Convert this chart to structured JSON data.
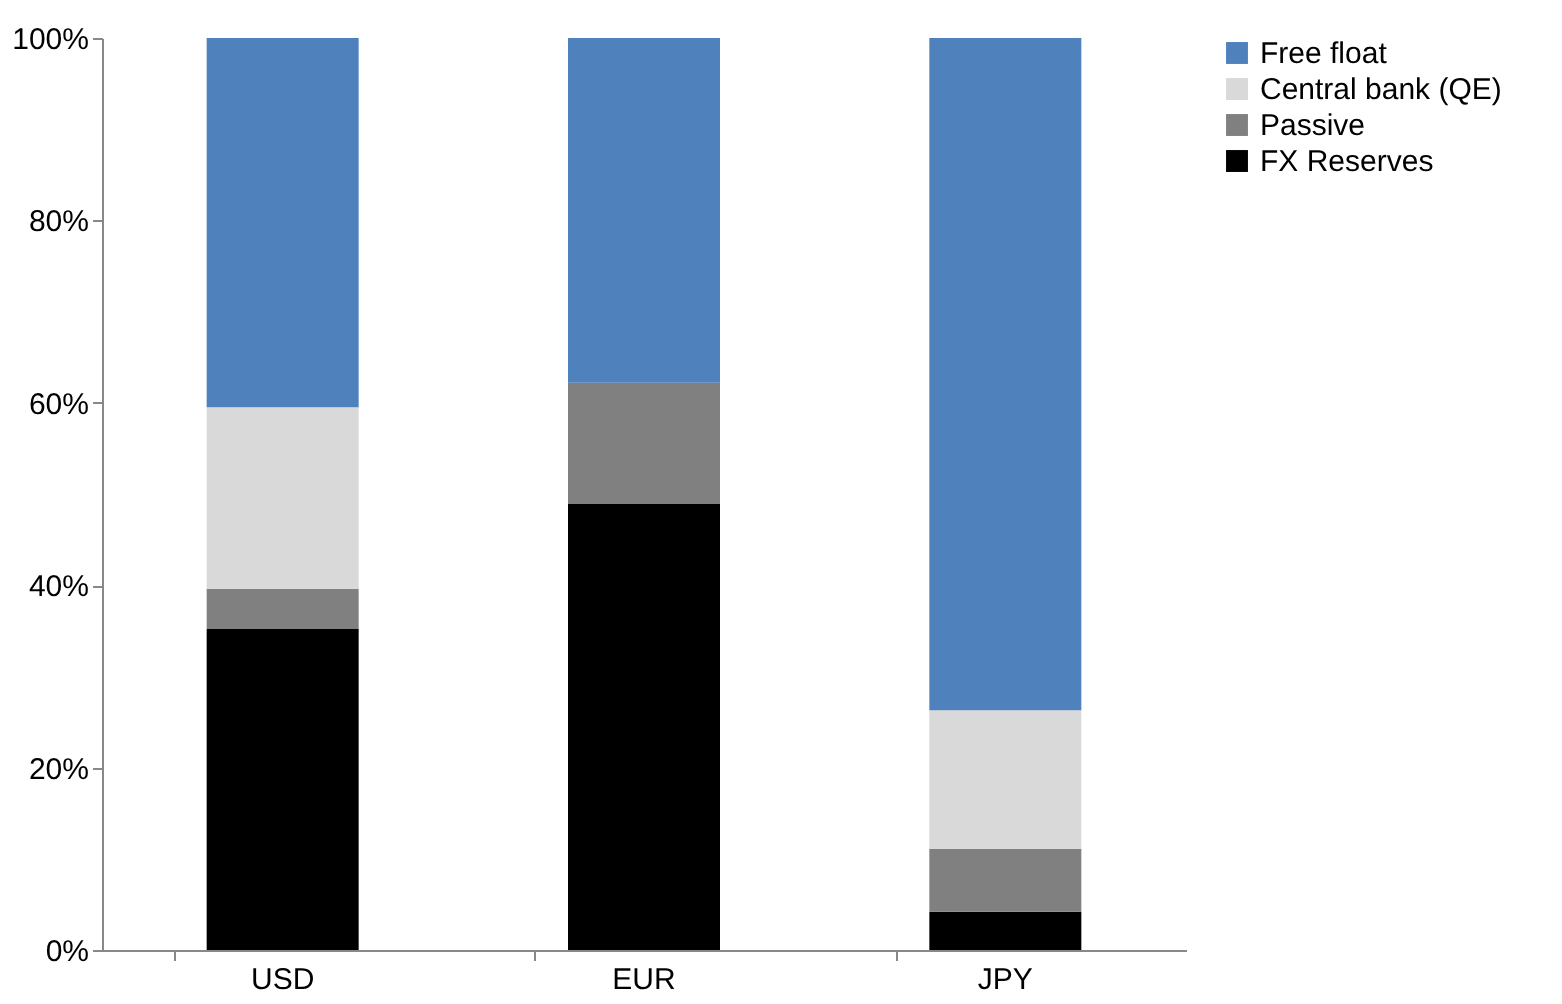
{
  "chart_data": {
    "type": "bar",
    "stacked": true,
    "categories": [
      "USD",
      "EUR",
      "JPY"
    ],
    "series": [
      {
        "name": "FX Reserves",
        "color": "#000000",
        "values": [
          35.2,
          48.9,
          4.2
        ]
      },
      {
        "name": "Passive",
        "color": "#808080",
        "values": [
          4.4,
          13.3,
          6.9
        ]
      },
      {
        "name": "Central bank (QE)",
        "color": "#d9d9d9",
        "values": [
          19.9,
          0,
          15.2
        ]
      },
      {
        "name": "Free float",
        "color": "#4f81bd",
        "values": [
          40.5,
          37.8,
          73.7
        ]
      }
    ],
    "ylim": [
      0,
      100
    ],
    "yticks": [
      {
        "value": 0,
        "label": "0%"
      },
      {
        "value": 20,
        "label": "20%"
      },
      {
        "value": 40,
        "label": "40%"
      },
      {
        "value": 60,
        "label": "60%"
      },
      {
        "value": 80,
        "label": "80%"
      },
      {
        "value": 100,
        "label": "100%"
      }
    ],
    "grid": false,
    "legend": "right"
  }
}
